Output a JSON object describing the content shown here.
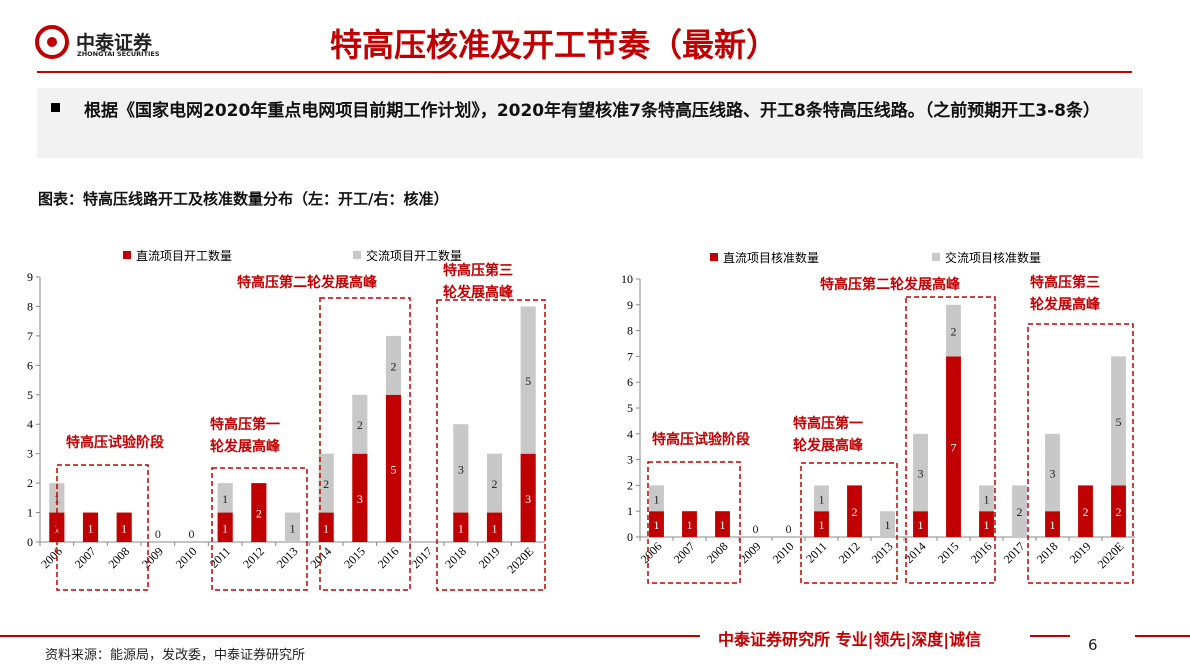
{
  "header": {
    "logo_name": "中泰证券",
    "logo_sub": "ZHONGTAI SECURITIES",
    "title": "特高压核准及开工节奏（最新）"
  },
  "bullet": "根据《国家电网2020年重点电网项目前期工作计划》，2020年有望核准7条特高压线路、开工8条特高压线路。（之前预期开工3-8条）",
  "caption": "图表：特高压线路开工及核准数量分布（左：开工/右：核准）",
  "footer": {
    "brand": "中泰证券研究所 专业|领先|深度|诚信",
    "page": "6",
    "source": "资料来源：能源局，发改委，中泰证券研究所"
  },
  "chart_data": [
    {
      "type": "stacked_bar",
      "categories": [
        "2006",
        "2007",
        "2008",
        "2009",
        "2010",
        "2011",
        "2012",
        "2013",
        "2014",
        "2015",
        "2016",
        "2017",
        "2018",
        "2019",
        "2020E"
      ],
      "series": [
        {
          "name": "直流项目开工数量",
          "color": "#c00000",
          "values": [
            1,
            1,
            1,
            0,
            0,
            1,
            2,
            null,
            1,
            3,
            5,
            null,
            1,
            1,
            3
          ]
        },
        {
          "name": "交流项目开工数量",
          "color": "#c8c8c8",
          "values": [
            1,
            null,
            null,
            null,
            null,
            1,
            null,
            1,
            2,
            2,
            2,
            null,
            3,
            2,
            5
          ]
        }
      ],
      "ylim": [
        0,
        9
      ],
      "yticks": [
        0,
        1,
        2,
        3,
        4,
        5,
        6,
        7,
        8,
        9
      ],
      "annotations": [
        "特高压试验阶段",
        "特高压第一轮发展高峰",
        "特高压第二轮发展高峰",
        "特高压第三轮发展高峰"
      ]
    },
    {
      "type": "stacked_bar",
      "categories": [
        "2006",
        "2007",
        "2008",
        "2009",
        "2010",
        "2011",
        "2012",
        "2013",
        "2014",
        "2015",
        "2016",
        "2017",
        "2018",
        "2019",
        "2020E"
      ],
      "series": [
        {
          "name": "直流项目核准数量",
          "color": "#c00000",
          "values": [
            1,
            1,
            1,
            0,
            0,
            1,
            2,
            null,
            1,
            7,
            1,
            null,
            1,
            2,
            2
          ]
        },
        {
          "name": "交流项目核准数量",
          "color": "#c8c8c8",
          "values": [
            1,
            null,
            null,
            null,
            null,
            1,
            null,
            1,
            3,
            2,
            1,
            2,
            3,
            null,
            5
          ]
        }
      ],
      "ylim": [
        0,
        10
      ],
      "yticks": [
        0,
        1,
        2,
        3,
        4,
        5,
        6,
        7,
        8,
        9,
        10
      ],
      "annotations": [
        "特高压试验阶段",
        "特高压第一轮发展高峰",
        "特高压第二轮发展高峰",
        "特高压第三轮发展高峰"
      ]
    }
  ]
}
